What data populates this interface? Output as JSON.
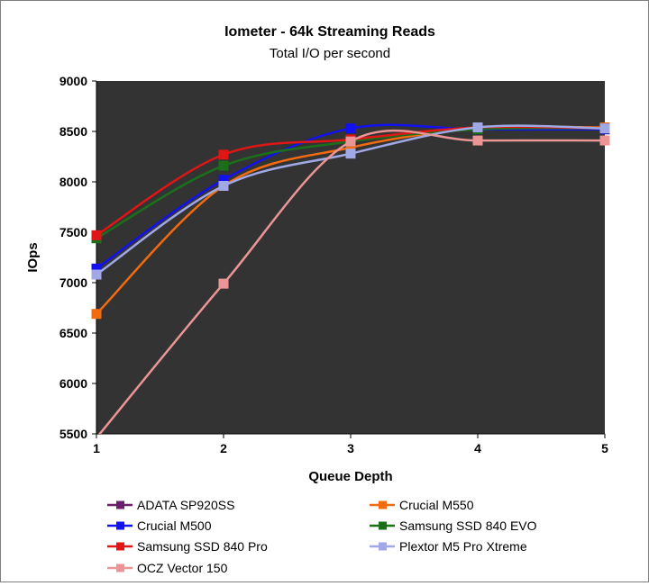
{
  "chart_data": {
    "type": "line",
    "title": "Iometer - 64k Streaming Reads",
    "subtitle": "Total I/O per second",
    "xlabel": "Queue Depth",
    "ylabel": "IOps",
    "x": [
      1,
      2,
      3,
      4,
      5
    ],
    "xlim": [
      1,
      5
    ],
    "ylim": [
      5500,
      9000
    ],
    "yticks": [
      5500,
      6000,
      6500,
      7000,
      7500,
      8000,
      8500,
      9000
    ],
    "grid": false,
    "plot_background": "#333333",
    "legend_position": "bottom",
    "series": [
      {
        "name": "ADATA SP920SS",
        "color": "#6B1F6E",
        "values": [
          null,
          null,
          null,
          8540,
          8540
        ]
      },
      {
        "name": "Crucial M550",
        "color": "#F26B0F",
        "values": [
          6690,
          7960,
          8340,
          8530,
          8540
        ]
      },
      {
        "name": "Crucial M500",
        "color": "#1212F0",
        "values": [
          7140,
          8020,
          8530,
          8520,
          8520
        ]
      },
      {
        "name": "Samsung SSD 840 EVO",
        "color": "#1B6F1B",
        "values": [
          7440,
          8160,
          8400,
          8520,
          8530
        ]
      },
      {
        "name": "Samsung SSD 840 Pro",
        "color": "#E01515",
        "values": [
          7470,
          8270,
          8420,
          8540,
          8530
        ]
      },
      {
        "name": "Plextor M5 Pro Xtreme",
        "color": "#A0A8E6",
        "values": [
          7080,
          7960,
          8280,
          8540,
          8530
        ]
      },
      {
        "name": "OCZ Vector 150",
        "color": "#EB9596",
        "values": [
          5460,
          6990,
          8400,
          8410,
          8410
        ]
      }
    ]
  }
}
